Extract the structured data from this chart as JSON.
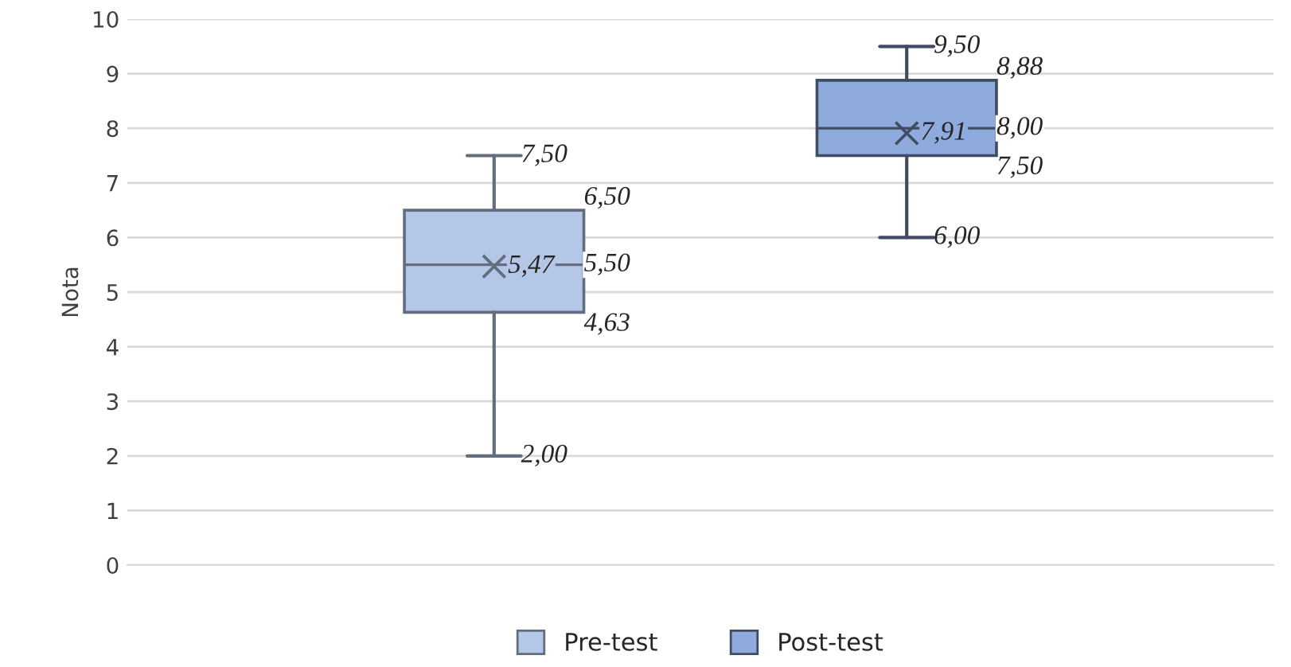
{
  "chart_data": {
    "type": "box",
    "ylabel": "Nota",
    "categories": [
      null
    ],
    "series": [
      {
        "name": "Pre-test",
        "color": "#b4c7e7",
        "boxes": [
          {
            "low": 2.0,
            "q1": 4.63,
            "median": 5.5,
            "q3": 6.5,
            "high": 7.5,
            "mean": 5.47
          }
        ]
      },
      {
        "name": "Post-test",
        "color": "#8faadc",
        "boxes": [
          {
            "low": 6.0,
            "q1": 7.5,
            "median": 8.0,
            "q3": 8.88,
            "high": 9.5,
            "mean": 7.91
          }
        ]
      }
    ],
    "annotations": [
      "2,00",
      "4,63",
      "5,50",
      "6,50",
      "7,50",
      "5,47",
      "6,00",
      "7,50",
      "8,00",
      "8,88",
      "9,50",
      "7,91"
    ],
    "ylim": [
      0,
      10
    ],
    "yticks": [
      0,
      1,
      2,
      3,
      4,
      5,
      6,
      7,
      8,
      9,
      10
    ],
    "grid": "y",
    "legend": "bottom"
  }
}
